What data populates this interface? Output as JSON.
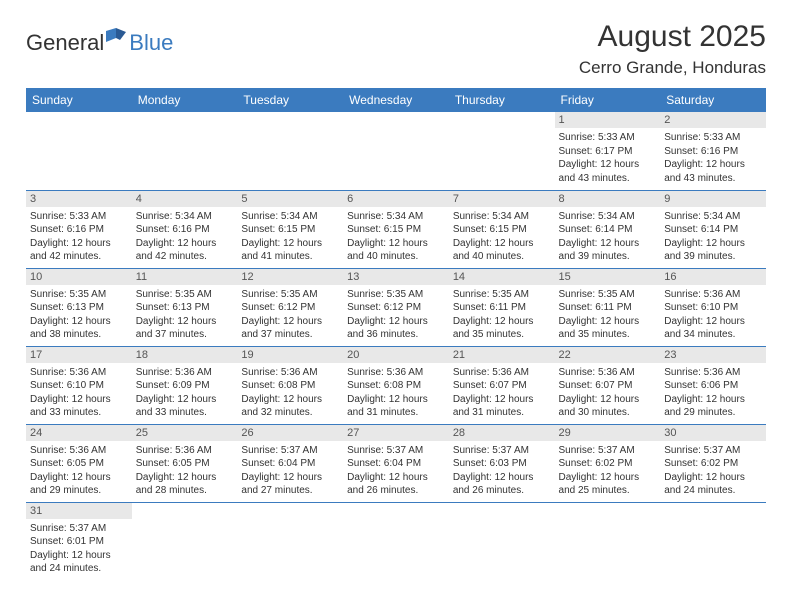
{
  "brand": {
    "text_general": "General",
    "text_blue": "Blue",
    "icon_color": "#3b7bbf"
  },
  "header": {
    "month_title": "August 2025",
    "location": "Cerro Grande, Honduras"
  },
  "colors": {
    "header_band": "#3b7bbf",
    "header_text": "#ffffff",
    "day_number_bg": "#e8e8e8",
    "cell_border": "#3b7bbf",
    "body_text": "#333333"
  },
  "day_labels": [
    "Sunday",
    "Monday",
    "Tuesday",
    "Wednesday",
    "Thursday",
    "Friday",
    "Saturday"
  ],
  "weeks": [
    [
      null,
      null,
      null,
      null,
      null,
      {
        "n": "1",
        "sunrise": "5:33 AM",
        "sunset": "6:17 PM",
        "daylight": "12 hours and 43 minutes."
      },
      {
        "n": "2",
        "sunrise": "5:33 AM",
        "sunset": "6:16 PM",
        "daylight": "12 hours and 43 minutes."
      }
    ],
    [
      {
        "n": "3",
        "sunrise": "5:33 AM",
        "sunset": "6:16 PM",
        "daylight": "12 hours and 42 minutes."
      },
      {
        "n": "4",
        "sunrise": "5:34 AM",
        "sunset": "6:16 PM",
        "daylight": "12 hours and 42 minutes."
      },
      {
        "n": "5",
        "sunrise": "5:34 AM",
        "sunset": "6:15 PM",
        "daylight": "12 hours and 41 minutes."
      },
      {
        "n": "6",
        "sunrise": "5:34 AM",
        "sunset": "6:15 PM",
        "daylight": "12 hours and 40 minutes."
      },
      {
        "n": "7",
        "sunrise": "5:34 AM",
        "sunset": "6:15 PM",
        "daylight": "12 hours and 40 minutes."
      },
      {
        "n": "8",
        "sunrise": "5:34 AM",
        "sunset": "6:14 PM",
        "daylight": "12 hours and 39 minutes."
      },
      {
        "n": "9",
        "sunrise": "5:34 AM",
        "sunset": "6:14 PM",
        "daylight": "12 hours and 39 minutes."
      }
    ],
    [
      {
        "n": "10",
        "sunrise": "5:35 AM",
        "sunset": "6:13 PM",
        "daylight": "12 hours and 38 minutes."
      },
      {
        "n": "11",
        "sunrise": "5:35 AM",
        "sunset": "6:13 PM",
        "daylight": "12 hours and 37 minutes."
      },
      {
        "n": "12",
        "sunrise": "5:35 AM",
        "sunset": "6:12 PM",
        "daylight": "12 hours and 37 minutes."
      },
      {
        "n": "13",
        "sunrise": "5:35 AM",
        "sunset": "6:12 PM",
        "daylight": "12 hours and 36 minutes."
      },
      {
        "n": "14",
        "sunrise": "5:35 AM",
        "sunset": "6:11 PM",
        "daylight": "12 hours and 35 minutes."
      },
      {
        "n": "15",
        "sunrise": "5:35 AM",
        "sunset": "6:11 PM",
        "daylight": "12 hours and 35 minutes."
      },
      {
        "n": "16",
        "sunrise": "5:36 AM",
        "sunset": "6:10 PM",
        "daylight": "12 hours and 34 minutes."
      }
    ],
    [
      {
        "n": "17",
        "sunrise": "5:36 AM",
        "sunset": "6:10 PM",
        "daylight": "12 hours and 33 minutes."
      },
      {
        "n": "18",
        "sunrise": "5:36 AM",
        "sunset": "6:09 PM",
        "daylight": "12 hours and 33 minutes."
      },
      {
        "n": "19",
        "sunrise": "5:36 AM",
        "sunset": "6:08 PM",
        "daylight": "12 hours and 32 minutes."
      },
      {
        "n": "20",
        "sunrise": "5:36 AM",
        "sunset": "6:08 PM",
        "daylight": "12 hours and 31 minutes."
      },
      {
        "n": "21",
        "sunrise": "5:36 AM",
        "sunset": "6:07 PM",
        "daylight": "12 hours and 31 minutes."
      },
      {
        "n": "22",
        "sunrise": "5:36 AM",
        "sunset": "6:07 PM",
        "daylight": "12 hours and 30 minutes."
      },
      {
        "n": "23",
        "sunrise": "5:36 AM",
        "sunset": "6:06 PM",
        "daylight": "12 hours and 29 minutes."
      }
    ],
    [
      {
        "n": "24",
        "sunrise": "5:36 AM",
        "sunset": "6:05 PM",
        "daylight": "12 hours and 29 minutes."
      },
      {
        "n": "25",
        "sunrise": "5:36 AM",
        "sunset": "6:05 PM",
        "daylight": "12 hours and 28 minutes."
      },
      {
        "n": "26",
        "sunrise": "5:37 AM",
        "sunset": "6:04 PM",
        "daylight": "12 hours and 27 minutes."
      },
      {
        "n": "27",
        "sunrise": "5:37 AM",
        "sunset": "6:04 PM",
        "daylight": "12 hours and 26 minutes."
      },
      {
        "n": "28",
        "sunrise": "5:37 AM",
        "sunset": "6:03 PM",
        "daylight": "12 hours and 26 minutes."
      },
      {
        "n": "29",
        "sunrise": "5:37 AM",
        "sunset": "6:02 PM",
        "daylight": "12 hours and 25 minutes."
      },
      {
        "n": "30",
        "sunrise": "5:37 AM",
        "sunset": "6:02 PM",
        "daylight": "12 hours and 24 minutes."
      }
    ],
    [
      {
        "n": "31",
        "sunrise": "5:37 AM",
        "sunset": "6:01 PM",
        "daylight": "12 hours and 24 minutes."
      },
      null,
      null,
      null,
      null,
      null,
      null
    ]
  ],
  "labels": {
    "sunrise": "Sunrise:",
    "sunset": "Sunset:",
    "daylight": "Daylight:"
  }
}
